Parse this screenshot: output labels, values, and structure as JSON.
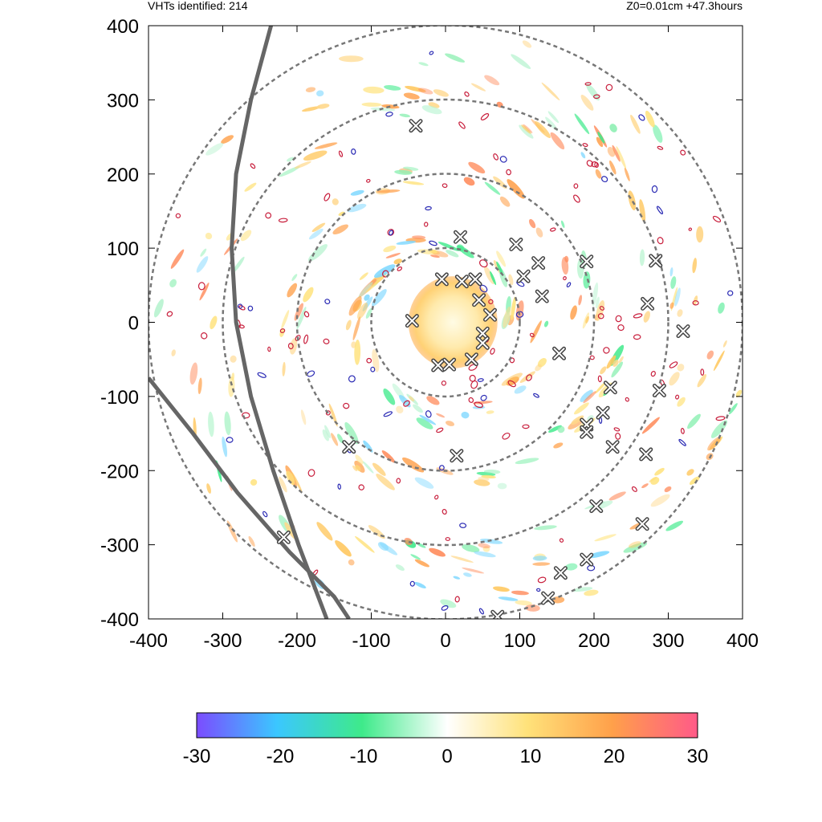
{
  "header": {
    "left": "VHTs identified: 214",
    "right": "Z0=0.01cm  +47.3hours"
  },
  "colors": {
    "ring": "#777777",
    "track": "#666666",
    "contour_warm": "#c81e3c",
    "contour_cool": "#2a2ab4",
    "marker": "#444444"
  },
  "chart_data": {
    "type": "scatter",
    "title": "",
    "xlabel": "",
    "ylabel": "",
    "xlim": [
      -400,
      400
    ],
    "ylim": [
      -400,
      400
    ],
    "x_ticks": [
      -400,
      -300,
      -200,
      -100,
      0,
      100,
      200,
      300,
      400
    ],
    "y_ticks": [
      -400,
      -300,
      -200,
      -100,
      0,
      100,
      200,
      300,
      400
    ],
    "range_rings_radius": [
      100,
      200,
      300,
      400
    ],
    "vht_count": 214,
    "series": [
      {
        "marker": "x",
        "points": [
          [
            -40,
            265
          ],
          [
            20,
            115
          ],
          [
            95,
            105
          ],
          [
            125,
            80
          ],
          [
            105,
            62
          ],
          [
            130,
            35
          ],
          [
            190,
            82
          ],
          [
            283,
            83
          ],
          [
            272,
            25
          ],
          [
            320,
            -12
          ],
          [
            153,
            -42
          ],
          [
            288,
            -92
          ],
          [
            222,
            -88
          ],
          [
            212,
            -122
          ],
          [
            190,
            -138
          ],
          [
            190,
            -148
          ],
          [
            225,
            -168
          ],
          [
            270,
            -178
          ],
          [
            203,
            -248
          ],
          [
            265,
            -272
          ],
          [
            190,
            -320
          ],
          [
            155,
            -338
          ],
          [
            138,
            -372
          ],
          [
            70,
            -397
          ],
          [
            -130,
            -168
          ],
          [
            15,
            -180
          ],
          [
            -218,
            -290
          ],
          [
            -45,
            2
          ],
          [
            40,
            58
          ],
          [
            50,
            -15
          ],
          [
            50,
            -28
          ],
          [
            -10,
            -58
          ],
          [
            5,
            -57
          ],
          [
            22,
            55
          ],
          [
            -5,
            58
          ],
          [
            45,
            30
          ],
          [
            60,
            10
          ],
          [
            35,
            -50
          ]
        ]
      }
    ],
    "storm_track": [
      [
        [
          -235,
          400
        ],
        [
          -262,
          300
        ],
        [
          -282,
          200
        ],
        [
          -288,
          100
        ],
        [
          -282,
          0
        ],
        [
          -262,
          -100
        ],
        [
          -232,
          -200
        ],
        [
          -198,
          -300
        ],
        [
          -160,
          -400
        ]
      ],
      [
        [
          -400,
          -75
        ],
        [
          -340,
          -150
        ],
        [
          -280,
          -230
        ],
        [
          -210,
          -310
        ],
        [
          -150,
          -370
        ],
        [
          -130,
          -400
        ]
      ]
    ],
    "colorbar": {
      "min": -30,
      "max": 30,
      "ticks": [
        -30,
        -20,
        -10,
        0,
        10,
        20,
        30
      ],
      "colors": [
        "#7b4cff",
        "#3bc7ff",
        "#3eea8a",
        "#ffffff",
        "#ffe27a",
        "#ffa04a",
        "#ff5a88"
      ]
    }
  }
}
